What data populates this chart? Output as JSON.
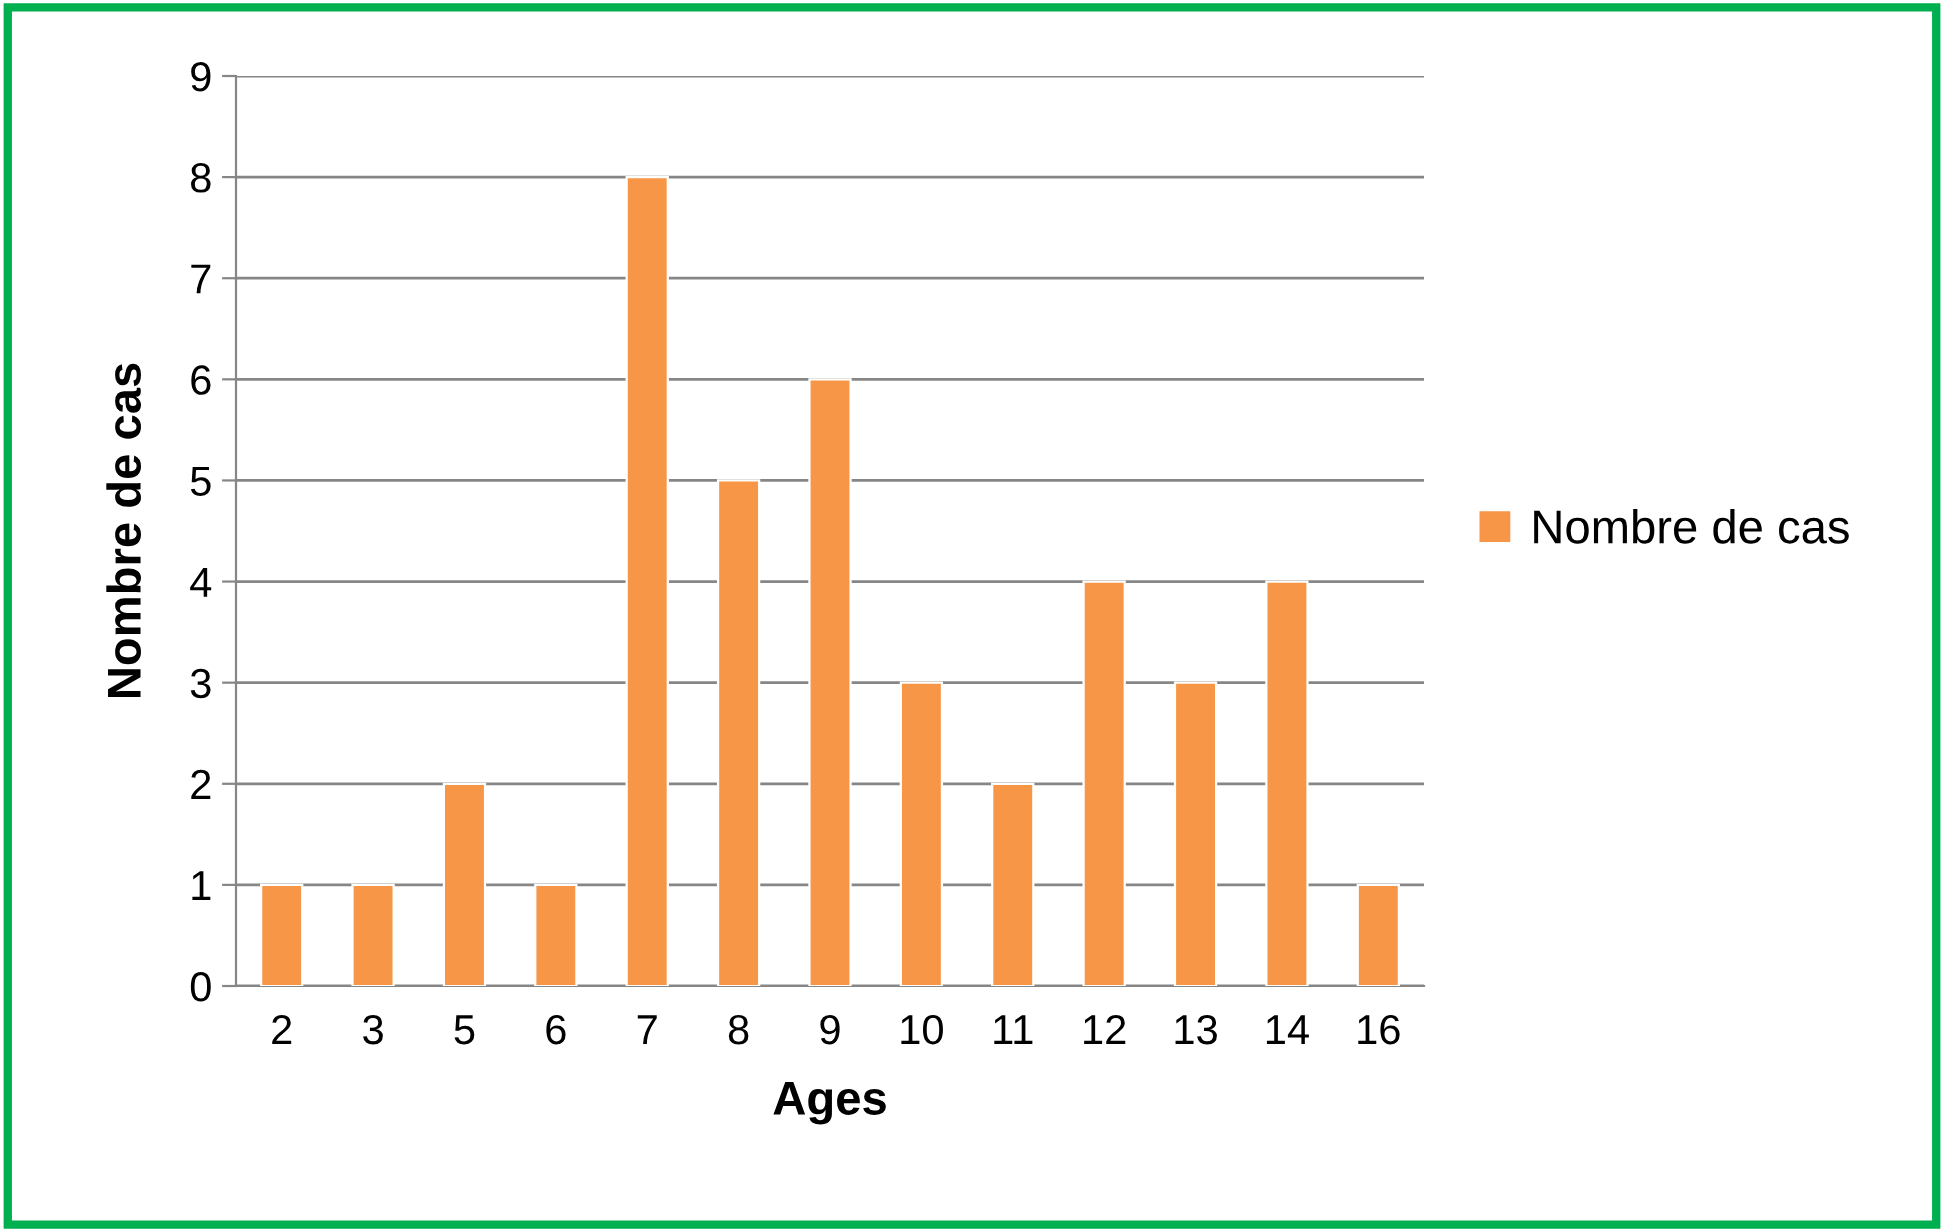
{
  "chart_data": {
    "type": "bar",
    "xlabel": "Ages",
    "ylabel": "Nombre de cas",
    "categories": [
      "2",
      "3",
      "5",
      "6",
      "7",
      "8",
      "9",
      "10",
      "11",
      "12",
      "13",
      "14",
      "16"
    ],
    "series": [
      {
        "name": "Nombre de cas",
        "color": "#f79646",
        "values": [
          1,
          1,
          2,
          1,
          8,
          5,
          6,
          3,
          2,
          4,
          3,
          4,
          1
        ]
      }
    ],
    "ylim": [
      0,
      9
    ],
    "yticks": [
      0,
      1,
      2,
      3,
      4,
      5,
      6,
      7,
      8,
      9
    ],
    "grid": "y",
    "legend": "right"
  }
}
